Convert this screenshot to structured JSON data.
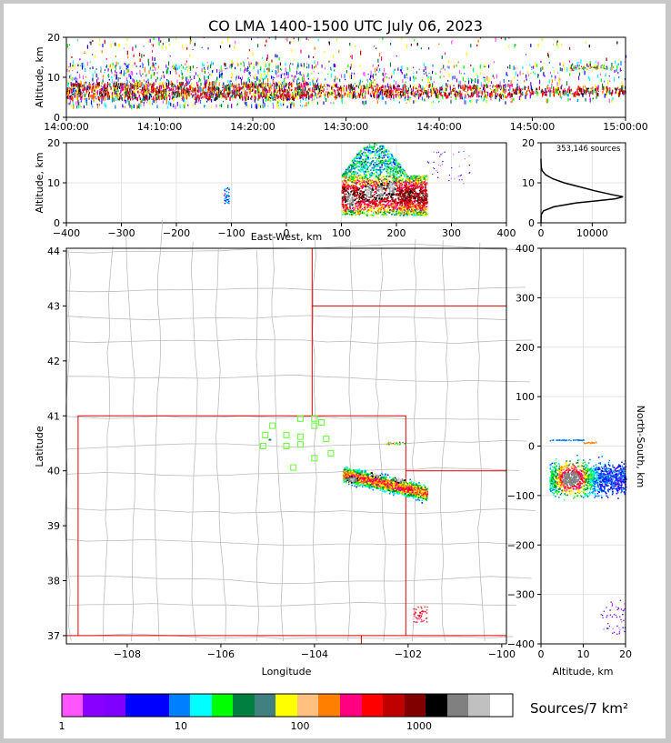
{
  "title": "CO LMA 1400-1500 UTC July 06, 2023",
  "chart_data": [
    {
      "type": "scatter",
      "panel": "time-altitude",
      "ylabel": "Altitude, km",
      "ylim": [
        0,
        20
      ],
      "yticks": [
        "0",
        "10",
        "20"
      ],
      "xticks": [
        "14:00:00",
        "14:10:00",
        "14:20:00",
        "14:30:00",
        "14:40:00",
        "14:50:00",
        "15:00:00"
      ],
      "xlim_minutes": [
        0,
        60
      ],
      "bands": [
        {
          "t0": 0,
          "t1": 26,
          "lo": 2.5,
          "hi": 13.5,
          "core_lo": 4.5,
          "core_hi": 8.5,
          "density": 1.0
        },
        {
          "t0": 26,
          "t1": 48,
          "lo": 3.5,
          "hi": 13.0,
          "core_lo": 5,
          "core_hi": 8,
          "density": 0.55
        },
        {
          "t0": 48,
          "t1": 60,
          "lo": 4.0,
          "hi": 14.0,
          "core_lo": 5.5,
          "core_hi": 7.5,
          "density": 0.4
        }
      ]
    },
    {
      "type": "heatmap",
      "panel": "east-west-altitude",
      "xlabel": "East-West, km",
      "ylabel": "Altitude, km",
      "xlim": [
        -400,
        400
      ],
      "ylim": [
        0,
        20
      ],
      "xticks": [
        "−400",
        "−300",
        "−200",
        "−100",
        "0",
        "100",
        "200",
        "300",
        "400"
      ],
      "yticks": [
        "0",
        "10",
        "20"
      ],
      "clusters": [
        {
          "x0": 100,
          "x1": 255,
          "zlo": 2,
          "zhi": 20,
          "cores": [
            {
              "x": 115,
              "z": 6
            },
            {
              "x": 148,
              "z": 8
            },
            {
              "x": 170,
              "z": 8
            },
            {
              "x": 190,
              "z": 9
            }
          ]
        },
        {
          "x0": -115,
          "x1": -105,
          "zlo": 5,
          "zhi": 9,
          "cores": []
        }
      ]
    },
    {
      "type": "line",
      "panel": "altitude-histogram",
      "annotation": "353,146 sources",
      "xlim": [
        0,
        16500
      ],
      "ylim": [
        0,
        20
      ],
      "xticks": [
        "0",
        "10000"
      ],
      "yticks": [
        "0",
        "10",
        "20"
      ],
      "profile": [
        {
          "alt": 0.0,
          "count": 0
        },
        {
          "alt": 2.0,
          "count": 30
        },
        {
          "alt": 3.0,
          "count": 500
        },
        {
          "alt": 4.0,
          "count": 2500
        },
        {
          "alt": 5.0,
          "count": 7000
        },
        {
          "alt": 5.5,
          "count": 11000
        },
        {
          "alt": 6.0,
          "count": 14500
        },
        {
          "alt": 6.5,
          "count": 16000
        },
        {
          "alt": 7.0,
          "count": 14000
        },
        {
          "alt": 8.0,
          "count": 10500
        },
        {
          "alt": 9.0,
          "count": 7500
        },
        {
          "alt": 10.0,
          "count": 4500
        },
        {
          "alt": 11.0,
          "count": 2300
        },
        {
          "alt": 12.0,
          "count": 900
        },
        {
          "alt": 13.0,
          "count": 250
        },
        {
          "alt": 14.0,
          "count": 40
        },
        {
          "alt": 16.0,
          "count": 0
        }
      ]
    },
    {
      "type": "heatmap",
      "panel": "plan-view",
      "xlabel": "Longitude",
      "ylabel": "Latitude",
      "xlim": [
        -109.3,
        -99.9
      ],
      "ylim": [
        36.85,
        44.05
      ],
      "xticks": [
        "−108",
        "−106",
        "−104",
        "−102",
        "−100"
      ],
      "yticks": [
        "37",
        "38",
        "39",
        "40",
        "41",
        "42",
        "43",
        "44"
      ],
      "storm": {
        "lon0": -103.4,
        "lon1": -101.6,
        "lat0": 39.5,
        "lat1": 40.25,
        "cores": [
          {
            "lon": -103.2,
            "lat": 39.85
          },
          {
            "lon": -102.7,
            "lat": 39.95
          },
          {
            "lon": -102.2,
            "lat": 39.85
          }
        ]
      },
      "stations": [
        {
          "lon": -104.3,
          "lat": 40.95
        },
        {
          "lon": -104.0,
          "lat": 40.95
        },
        {
          "lon": -103.85,
          "lat": 40.88
        },
        {
          "lon": -104.0,
          "lat": 40.82
        },
        {
          "lon": -104.9,
          "lat": 40.82
        },
        {
          "lon": -105.05,
          "lat": 40.65
        },
        {
          "lon": -104.6,
          "lat": 40.65
        },
        {
          "lon": -104.3,
          "lat": 40.62
        },
        {
          "lon": -103.75,
          "lat": 40.58
        },
        {
          "lon": -105.1,
          "lat": 40.45
        },
        {
          "lon": -104.6,
          "lat": 40.45
        },
        {
          "lon": -104.3,
          "lat": 40.48
        },
        {
          "lon": -103.65,
          "lat": 40.32
        },
        {
          "lon": -104.0,
          "lat": 40.23
        },
        {
          "lon": -104.45,
          "lat": 40.06
        }
      ]
    },
    {
      "type": "heatmap",
      "panel": "altitude-north-south",
      "xlabel": "Altitude, km",
      "ylabel": "North-South, km",
      "xlim": [
        0,
        20
      ],
      "ylim": [
        -400,
        400
      ],
      "xticks": [
        "0",
        "10",
        "20"
      ],
      "yticks": [
        "400",
        "300",
        "200",
        "100",
        "0",
        "−100",
        "−200",
        "−300",
        "−400"
      ]
    }
  ],
  "colorbar": {
    "label": "Sources/7 km²",
    "ticks": [
      "1",
      "10",
      "100",
      "1000"
    ],
    "colors": [
      "#ff55ff",
      "#8800ff",
      "#8000ff",
      "#0000ff",
      "#0000ff",
      "#0080ff",
      "#00ffff",
      "#00ff00",
      "#008040",
      "#408080",
      "#ffff00",
      "#ffc080",
      "#ff8000",
      "#ff0080",
      "#ff0000",
      "#c00000",
      "#800000",
      "#000000",
      "#808080",
      "#c0c0c0",
      "#ffffff"
    ]
  }
}
